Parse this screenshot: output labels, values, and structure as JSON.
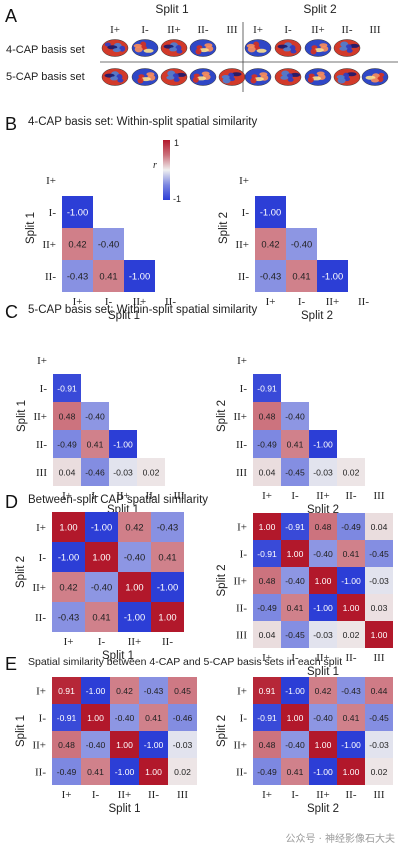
{
  "panel_letters": [
    "A",
    "B",
    "C",
    "D",
    "E"
  ],
  "panelA": {
    "split_titles": [
      "Split 1",
      "Split 2"
    ],
    "cap_labels": [
      "I+",
      "I-",
      "II+",
      "II-",
      "III"
    ],
    "rows": [
      "4-CAP basis set",
      "5-CAP basis set"
    ]
  },
  "titles": {
    "B": "4-CAP basis set: Within-split spatial similarity",
    "C": "5-CAP basis set: Within-split spatial similarity",
    "D": "Between-split CAP spatial similarity",
    "E": "Spatial similarity between 4-CAP and 5-CAP basis sets in each split"
  },
  "colorbar": {
    "symbol": "r",
    "max_label": "1",
    "min_label": "-1",
    "colors": {
      "high": "#b2182b",
      "mid": "#f0f0f0",
      "low": "#2c3ed6"
    }
  },
  "watermark": "公众号 · 神经影像石大夫",
  "chart_data": [
    {
      "id": "B1",
      "type": "heatmap",
      "shape": "lower-triangle",
      "show_colorbar": true,
      "xlabel": "Split 1",
      "ylabel": "Split 1",
      "x": [
        "I+",
        "I-",
        "II+",
        "II-"
      ],
      "y": [
        "I+",
        "I-",
        "II+",
        "II-"
      ],
      "values": [
        [
          null,
          null,
          null,
          null
        ],
        [
          "-1.00",
          null,
          null,
          null
        ],
        [
          "0.42",
          "-0.40",
          null,
          null
        ],
        [
          "-0.43",
          "0.41",
          "-1.00",
          null
        ]
      ]
    },
    {
      "id": "B2",
      "type": "heatmap",
      "shape": "lower-triangle",
      "xlabel": "Split 2",
      "ylabel": "Split 2",
      "x": [
        "I+",
        "I-",
        "II+",
        "II-"
      ],
      "y": [
        "I+",
        "I-",
        "II+",
        "II-"
      ],
      "values": [
        [
          null,
          null,
          null,
          null
        ],
        [
          "-1.00",
          null,
          null,
          null
        ],
        [
          "0.42",
          "-0.40",
          null,
          null
        ],
        [
          "-0.43",
          "0.41",
          "-1.00",
          null
        ]
      ]
    },
    {
      "id": "C1",
      "type": "heatmap",
      "shape": "lower-triangle",
      "xlabel": "Split 1",
      "ylabel": "Split 1",
      "x": [
        "I+",
        "I-",
        "II+",
        "II-",
        "III"
      ],
      "y": [
        "I+",
        "I-",
        "II+",
        "II-",
        "III"
      ],
      "values": [
        [
          null,
          null,
          null,
          null,
          null
        ],
        [
          "-0.91",
          null,
          null,
          null,
          null
        ],
        [
          "0.48",
          "-0.40",
          null,
          null,
          null
        ],
        [
          "-0.49",
          "0.41",
          "-1.00",
          null,
          null
        ],
        [
          "0.04",
          "-0.46",
          "-0.03",
          "0.02",
          null
        ]
      ]
    },
    {
      "id": "C2",
      "type": "heatmap",
      "shape": "lower-triangle",
      "xlabel": "Split 2",
      "ylabel": "Split 2",
      "x": [
        "I+",
        "I-",
        "II+",
        "II-",
        "III"
      ],
      "y": [
        "I+",
        "I-",
        "II+",
        "II-",
        "III"
      ],
      "values": [
        [
          null,
          null,
          null,
          null,
          null
        ],
        [
          "-0.91",
          null,
          null,
          null,
          null
        ],
        [
          "0.48",
          "-0.40",
          null,
          null,
          null
        ],
        [
          "-0.49",
          "0.41",
          "-1.00",
          null,
          null
        ],
        [
          "0.04",
          "-0.45",
          "-0.03",
          "0.02",
          null
        ]
      ]
    },
    {
      "id": "D1",
      "type": "heatmap",
      "shape": "full",
      "xlabel": "Split 1",
      "ylabel": "Split 2",
      "x": [
        "I+",
        "I-",
        "II+",
        "II-"
      ],
      "y": [
        "I+",
        "I-",
        "II+",
        "II-"
      ],
      "values": [
        [
          "1.00",
          "-1.00",
          "0.42",
          "-0.43"
        ],
        [
          "-1.00",
          "1.00",
          "-0.40",
          "0.41"
        ],
        [
          "0.42",
          "-0.40",
          "1.00",
          "-1.00"
        ],
        [
          "-0.43",
          "0.41",
          "-1.00",
          "1.00"
        ]
      ]
    },
    {
      "id": "D2",
      "type": "heatmap",
      "shape": "full",
      "xlabel": "Split 1",
      "ylabel": "Split 2",
      "x": [
        "I+",
        "I-",
        "II+",
        "II-",
        "III"
      ],
      "y": [
        "I+",
        "I-",
        "II+",
        "II-",
        "III"
      ],
      "values": [
        [
          "1.00",
          "-0.91",
          "0.48",
          "-0.49",
          "0.04"
        ],
        [
          "-0.91",
          "1.00",
          "-0.40",
          "0.41",
          "-0.45"
        ],
        [
          "0.48",
          "-0.40",
          "1.00",
          "-1.00",
          "-0.03"
        ],
        [
          "-0.49",
          "0.41",
          "-1.00",
          "1.00",
          "0.03"
        ],
        [
          "0.04",
          "-0.45",
          "-0.03",
          "0.02",
          "1.00"
        ]
      ]
    },
    {
      "id": "E1",
      "type": "heatmap",
      "shape": "full",
      "xlabel": "Split 1",
      "ylabel": "Split 1",
      "x": [
        "I+",
        "I-",
        "II+",
        "II-",
        "III"
      ],
      "y": [
        "I+",
        "I-",
        "II+",
        "II-"
      ],
      "values": [
        [
          "0.91",
          "-1.00",
          "0.42",
          "-0.43",
          "0.45"
        ],
        [
          "-0.91",
          "1.00",
          "-0.40",
          "0.41",
          "-0.46"
        ],
        [
          "0.48",
          "-0.40",
          "1.00",
          "-1.00",
          "-0.03"
        ],
        [
          "-0.49",
          "0.41",
          "-1.00",
          "1.00",
          "0.02"
        ]
      ]
    },
    {
      "id": "E2",
      "type": "heatmap",
      "shape": "full",
      "xlabel": "Split 2",
      "ylabel": "Split 2",
      "x": [
        "I+",
        "I-",
        "II+",
        "II-",
        "III"
      ],
      "y": [
        "I+",
        "I-",
        "II+",
        "II-"
      ],
      "values": [
        [
          "0.91",
          "-1.00",
          "0.42",
          "-0.43",
          "0.44"
        ],
        [
          "-0.91",
          "1.00",
          "-0.40",
          "0.41",
          "-0.45"
        ],
        [
          "0.48",
          "-0.40",
          "1.00",
          "-1.00",
          "-0.03"
        ],
        [
          "-0.49",
          "0.41",
          "-1.00",
          "1.00",
          "0.02"
        ]
      ]
    }
  ]
}
